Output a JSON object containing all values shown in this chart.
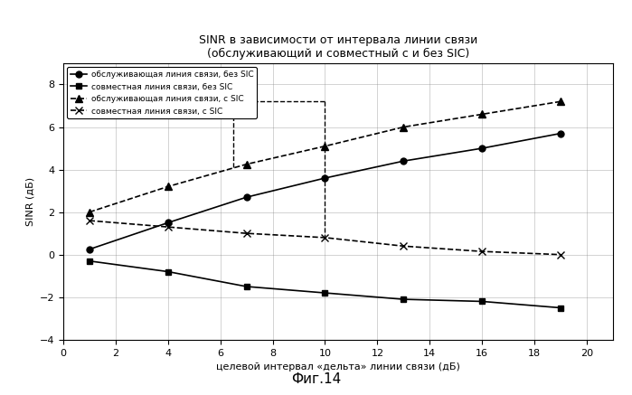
{
  "title_line1": "SINR в зависимости от интервала линии связи",
  "title_line2": "(обслуживающий и совместный с и без SIC)",
  "xlabel": "целевой интервал «дельта» линии связи (дБ)",
  "ylabel": "SINR (дБ)",
  "figcaption": "Фиг.14",
  "xlim": [
    0,
    21
  ],
  "ylim": [
    -4,
    9
  ],
  "xticks": [
    0,
    2,
    4,
    6,
    8,
    10,
    12,
    14,
    16,
    18,
    20
  ],
  "yticks": [
    -4,
    -2,
    0,
    2,
    4,
    6,
    8
  ],
  "series": [
    {
      "label": "обслуживающая линия связи, без SIC",
      "x": [
        1,
        4,
        7,
        10,
        13,
        16,
        19
      ],
      "y": [
        0.25,
        1.5,
        2.7,
        3.6,
        4.4,
        5.0,
        5.7
      ],
      "color": "#000000",
      "marker": "o",
      "linestyle": "-",
      "linewidth": 1.2,
      "markersize": 5,
      "fillmarker": true
    },
    {
      "label": "совместная линия связи, без SIC",
      "x": [
        1,
        4,
        7,
        10,
        13,
        16,
        19
      ],
      "y": [
        -0.3,
        -0.8,
        -1.5,
        -1.8,
        -2.1,
        -2.2,
        -2.5
      ],
      "color": "#000000",
      "marker": "s",
      "linestyle": "-",
      "linewidth": 1.2,
      "markersize": 5,
      "fillmarker": true
    },
    {
      "label": "обслуживающая линия связи, с SIC",
      "x": [
        1,
        4,
        7,
        10,
        13,
        16,
        19
      ],
      "y": [
        2.0,
        3.2,
        4.25,
        5.1,
        6.0,
        6.6,
        7.2
      ],
      "color": "#000000",
      "marker": "^",
      "linestyle": "--",
      "linewidth": 1.2,
      "markersize": 6,
      "fillmarker": true
    },
    {
      "label": "совместная линия связи, с SIC",
      "x": [
        1,
        4,
        7,
        10,
        13,
        16,
        19
      ],
      "y": [
        1.6,
        1.3,
        1.0,
        0.8,
        0.4,
        0.15,
        0.0
      ],
      "color": "#000000",
      "marker": "x",
      "linestyle": "--",
      "linewidth": 1.2,
      "markersize": 6,
      "fillmarker": false
    }
  ],
  "bracket_lines": [
    {
      "x": [
        6.5,
        6.5
      ],
      "y": [
        4.1,
        7.2
      ]
    },
    {
      "x": [
        6.5,
        10.0
      ],
      "y": [
        7.2,
        7.2
      ]
    },
    {
      "x": [
        10.0,
        10.0
      ],
      "y": [
        7.2,
        0.75
      ]
    }
  ]
}
